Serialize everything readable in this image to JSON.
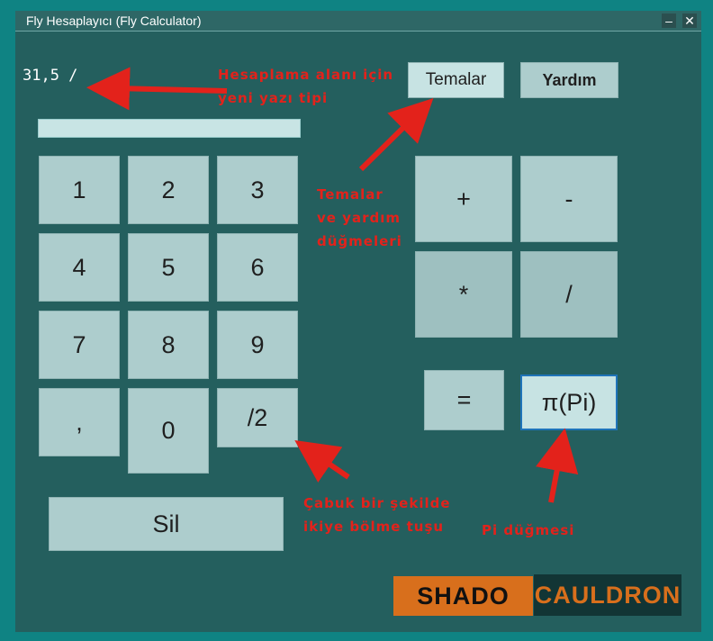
{
  "window": {
    "title": "Fly Hesaplayıcı (Fly Calculator)",
    "minimize": "–",
    "close": "✕"
  },
  "display": {
    "value": "31,5 /",
    "entry_value": ""
  },
  "toolbar": {
    "themes": "Temalar",
    "help": "Yardım"
  },
  "keypad": {
    "k1": "1",
    "k2": "2",
    "k3": "3",
    "k4": "4",
    "k5": "5",
    "k6": "6",
    "k7": "7",
    "k8": "8",
    "k9": "9",
    "comma": ",",
    "k0": "0",
    "half": "/2"
  },
  "operators": {
    "plus": "+",
    "minus": "-",
    "multiply": "*",
    "divide": "/",
    "equals": "=",
    "pi": "π(Pi)"
  },
  "clear": "Sil",
  "annotations": {
    "font_note": "Hesaplama alanı için\nyeni yazı tipi",
    "buttons_note": "Temalar\nve yardım\ndüğmeleri",
    "half_note": "Çabuk bir şekilde\nikiye bölme tuşu",
    "pi_note": "Pi düğmesi"
  },
  "logo": {
    "left": "SHADO",
    "right": "CAULDRON"
  },
  "colors": {
    "accent_annotation": "#e3221b",
    "logo_orange": "#d86f1c",
    "background": "#245f5e"
  }
}
